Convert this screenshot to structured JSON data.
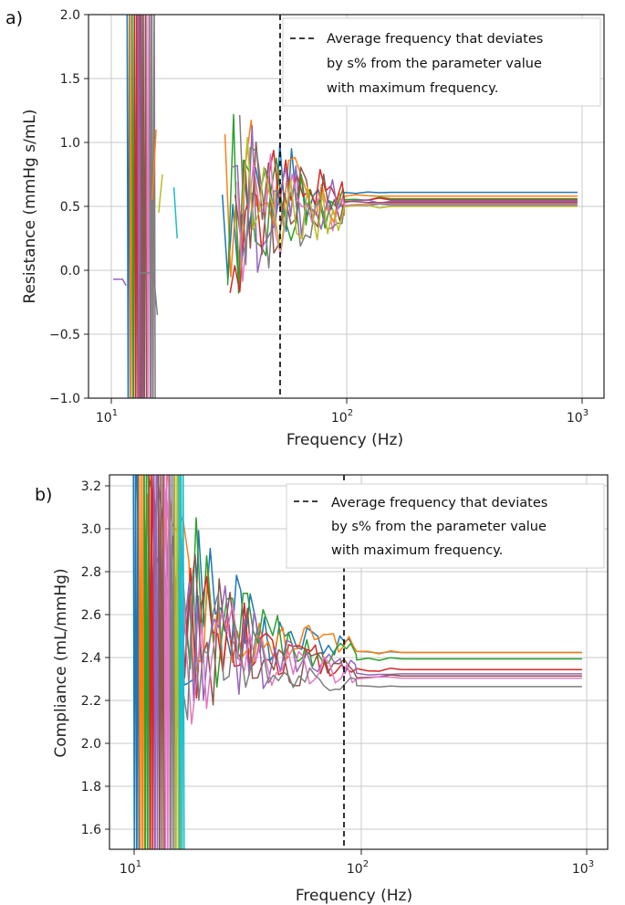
{
  "panel_a": {
    "label": "a)"
  },
  "panel_b": {
    "label": "b)"
  },
  "chart_data": [
    {
      "type": "line",
      "ylabel": "Resistance (mmHg s/mL)",
      "xlabel": "Frequency (Hz)",
      "x_scale": "log",
      "xlim": [
        8,
        1300
      ],
      "ylim": [
        -1.0,
        2.0
      ],
      "x_tick_labels": [
        "10^1",
        "10^2",
        "10^3"
      ],
      "y_ticks": [
        -1.0,
        -0.5,
        0.0,
        0.5,
        1.0,
        1.5,
        2.0
      ],
      "y_tick_labels": [
        "−1.0",
        "−0.5",
        "0.0",
        "0.5",
        "1.0",
        "1.5",
        "2.0"
      ],
      "grid": true,
      "reference_line": {
        "x": 53,
        "style": "dashed",
        "color": "#000000"
      },
      "legend": {
        "placement": "top-right",
        "label": "Average frequency that deviates by s% from the parameter value with maximum frequency."
      },
      "series_colors": [
        "#1f77b4",
        "#ff7f0e",
        "#2ca02c",
        "#d62728",
        "#9467bd",
        "#8c564b",
        "#e377c2",
        "#7f7f7f",
        "#bcbd22",
        "#17becf"
      ],
      "converged_values": [
        0.61,
        0.58,
        0.56,
        0.55,
        0.54,
        0.53,
        0.52,
        0.51,
        0.5
      ],
      "converged_range": [
        100,
        1000
      ]
    },
    {
      "type": "line",
      "ylabel": "Compliance (mL/mmHg)",
      "xlabel": "Frequency (Hz)",
      "x_scale": "log",
      "xlim": [
        8,
        1300
      ],
      "ylim": [
        1.5,
        3.25
      ],
      "x_tick_labels": [
        "10^1",
        "10^2",
        "10^3"
      ],
      "y_ticks": [
        1.6,
        1.8,
        2.0,
        2.2,
        2.4,
        2.6,
        2.8,
        3.0,
        3.2
      ],
      "y_tick_labels": [
        "1.6",
        "1.8",
        "2.0",
        "2.2",
        "2.4",
        "2.6",
        "2.8",
        "3.0",
        "3.2"
      ],
      "grid": true,
      "reference_line": {
        "x": 85,
        "style": "dashed",
        "color": "#000000"
      },
      "legend": {
        "placement": "top-right",
        "label": "Average frequency that deviates by s% from the parameter value with maximum frequency."
      },
      "series_colors": [
        "#1f77b4",
        "#ff7f0e",
        "#2ca02c",
        "#d62728",
        "#9467bd",
        "#8c564b",
        "#e377c2",
        "#7f7f7f",
        "#bcbd22",
        "#17becf"
      ],
      "converged_values": [
        2.42,
        2.42,
        2.39,
        2.34,
        2.32,
        2.31,
        2.3,
        2.26
      ],
      "converged_range": [
        100,
        1000
      ]
    }
  ],
  "text": {
    "legend_line1": "Average frequency that deviates",
    "legend_line2": "by s% from the parameter value",
    "legend_line3": "with maximum frequency.",
    "xlabel": "Frequency (Hz)",
    "ylabel_a": "Resistance (mmHg s/mL)",
    "ylabel_b": "Compliance (mL/mmHg)",
    "y_ticks_a": [
      "−1.0",
      "−0.5",
      "0.0",
      "0.5",
      "1.0",
      "1.5",
      "2.0"
    ],
    "y_ticks_b": [
      "1.6",
      "1.8",
      "2.0",
      "2.2",
      "2.4",
      "2.6",
      "2.8",
      "3.0",
      "3.2"
    ]
  }
}
